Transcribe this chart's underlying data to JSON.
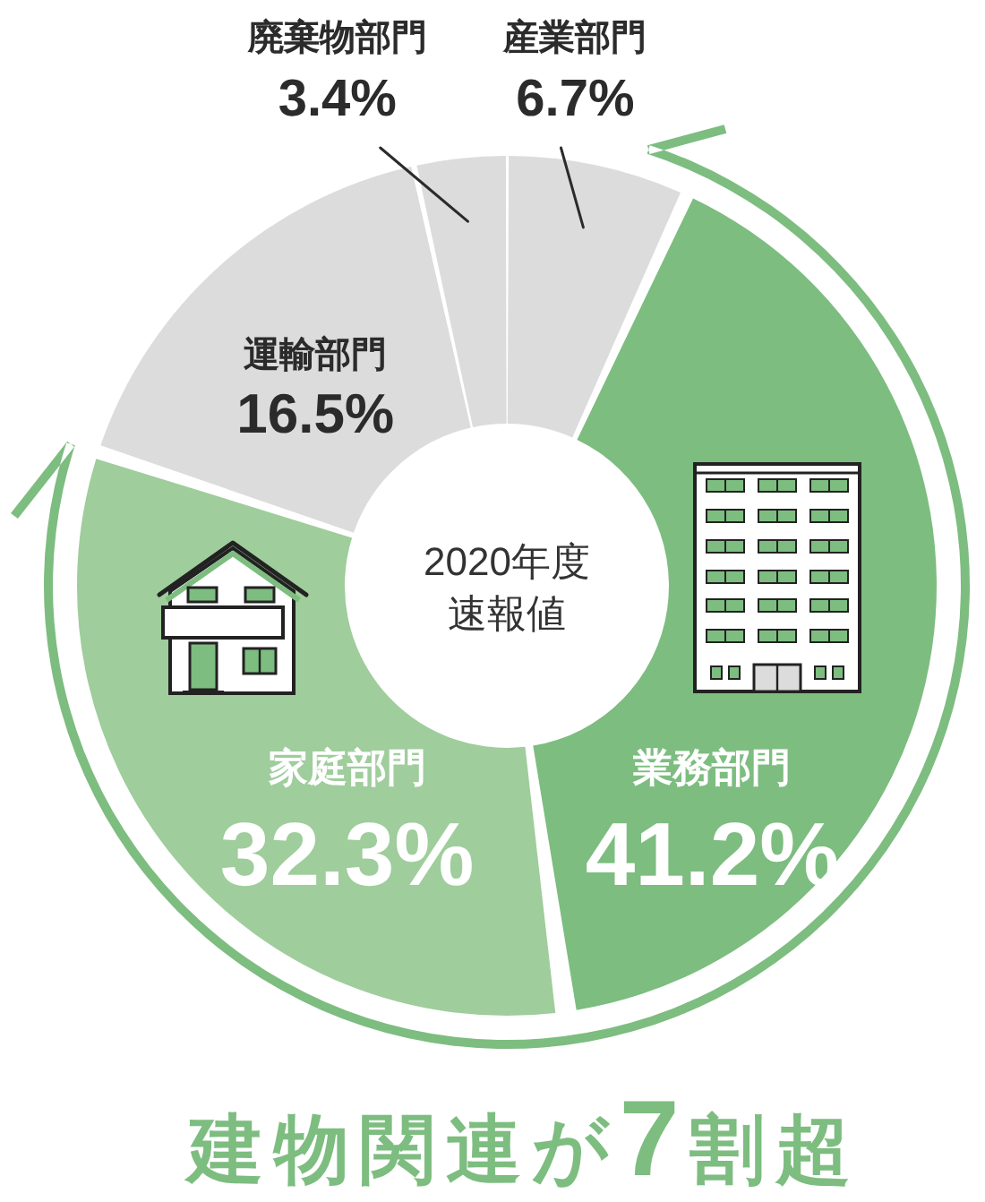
{
  "chart_data": {
    "type": "donut",
    "title": "建物関連が7割超",
    "subtitle": "2020年度速報値",
    "categories": [
      "産業部門",
      "業務部門",
      "家庭部門",
      "運輸部門",
      "廃棄物部門"
    ],
    "values": [
      6.7,
      41.2,
      32.3,
      16.5,
      3.4
    ],
    "colors": [
      "#dcdcdd",
      "#7dbd80",
      "#9fcd9c",
      "#dcdcdd",
      "#dcdcdd"
    ],
    "value_labels": [
      "6.7%",
      "41.2%",
      "32.3%",
      "16.5%",
      "3.4%"
    ]
  }
}
